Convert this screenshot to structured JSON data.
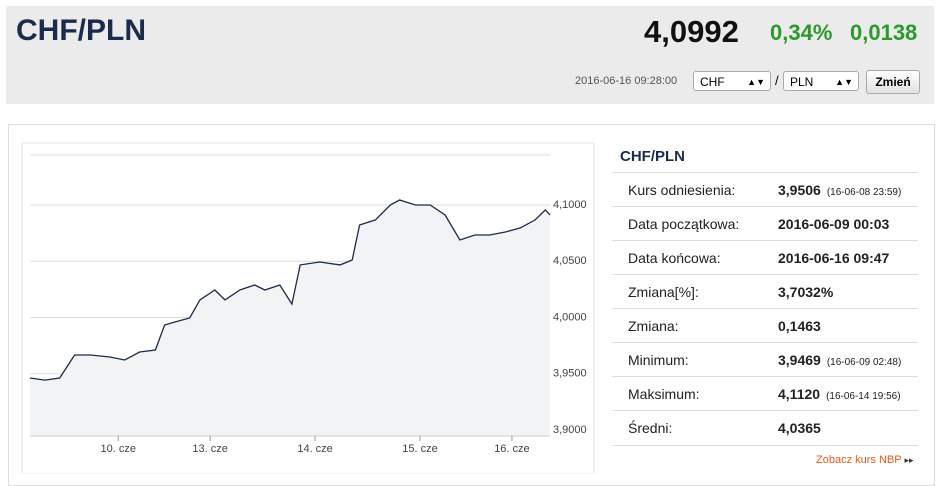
{
  "header": {
    "pair": "CHF/PLN",
    "rate": "4,0992",
    "change_pct": "0,34%",
    "change": "0,0138",
    "timestamp": "2016-06-16 09:28:00",
    "from": "CHF",
    "separator": "/",
    "to": "PLN",
    "button": "Zmień"
  },
  "chart_data": {
    "type": "line",
    "x": [
      0,
      0.16,
      0.32,
      0.48,
      0.65,
      0.86,
      1.02,
      1.18,
      1.35,
      1.45,
      1.56,
      1.72,
      1.83,
      1.99,
      2.1,
      2.26,
      2.42,
      2.53,
      2.69,
      2.82,
      2.91,
      3.12,
      3.34,
      3.47,
      3.55,
      3.72,
      3.88,
      3.98,
      4.15,
      4.31,
      4.47,
      4.63,
      4.79,
      4.95,
      5.12,
      5.28,
      5.44,
      5.55,
      5.6
    ],
    "series": [
      {
        "color": "#1b2b4b",
        "values": [
          3.9462,
          3.9444,
          3.9462,
          3.9667,
          3.9667,
          3.9649,
          3.9622,
          3.9693,
          3.9711,
          3.9933,
          3.996,
          3.9996,
          4.0156,
          4.0244,
          4.0156,
          4.0244,
          4.0289,
          4.0244,
          4.0289,
          4.012,
          4.0467,
          4.0493,
          4.0467,
          4.0511,
          4.0822,
          4.0867,
          4.1,
          4.1044,
          4.1,
          4.1,
          4.0911,
          4.0689,
          4.0733,
          4.0733,
          4.076,
          4.0796,
          4.0867,
          4.0956,
          4.0911
        ]
      }
    ],
    "xlim": [
      0,
      5.6
    ],
    "xticks": [
      {
        "value": 0.95,
        "label": "10. cze"
      },
      {
        "value": 1.94,
        "label": "13. cze"
      },
      {
        "value": 3.07,
        "label": "14. cze"
      },
      {
        "value": 4.2,
        "label": "15. cze"
      },
      {
        "value": 5.19,
        "label": "16. cze"
      }
    ],
    "ylim": [
      3.8947,
      4.1444
    ],
    "yticks": [
      {
        "value": 3.9,
        "label": "3,9000"
      },
      {
        "value": 3.95,
        "label": "3,9500"
      },
      {
        "value": 4.0,
        "label": "4,0000"
      },
      {
        "value": 4.05,
        "label": "4,0500"
      },
      {
        "value": 4.1,
        "label": "4,1000"
      }
    ],
    "grid": true
  },
  "table": {
    "title": "CHF/PLN",
    "rows": [
      [
        "Kurs odniesienia:",
        "3,9506",
        "(16-06-08 23:59)"
      ],
      [
        "Data początkowa:",
        "2016-06-09 00:03"
      ],
      [
        "Data końcowa:",
        "2016-06-16 09:47"
      ],
      [
        "Zmiana[%]:",
        "3,7032%"
      ],
      [
        "Zmiana:",
        "0,1463"
      ],
      [
        "Minimum:",
        "3,9469",
        "(16-06-09 02:48)"
      ],
      [
        "Maksimum:",
        "4,1120",
        "(16-06-14 19:56)"
      ],
      [
        "Średni:",
        "4,0365"
      ]
    ]
  },
  "footer_link": "Zobacz kurs NBP"
}
